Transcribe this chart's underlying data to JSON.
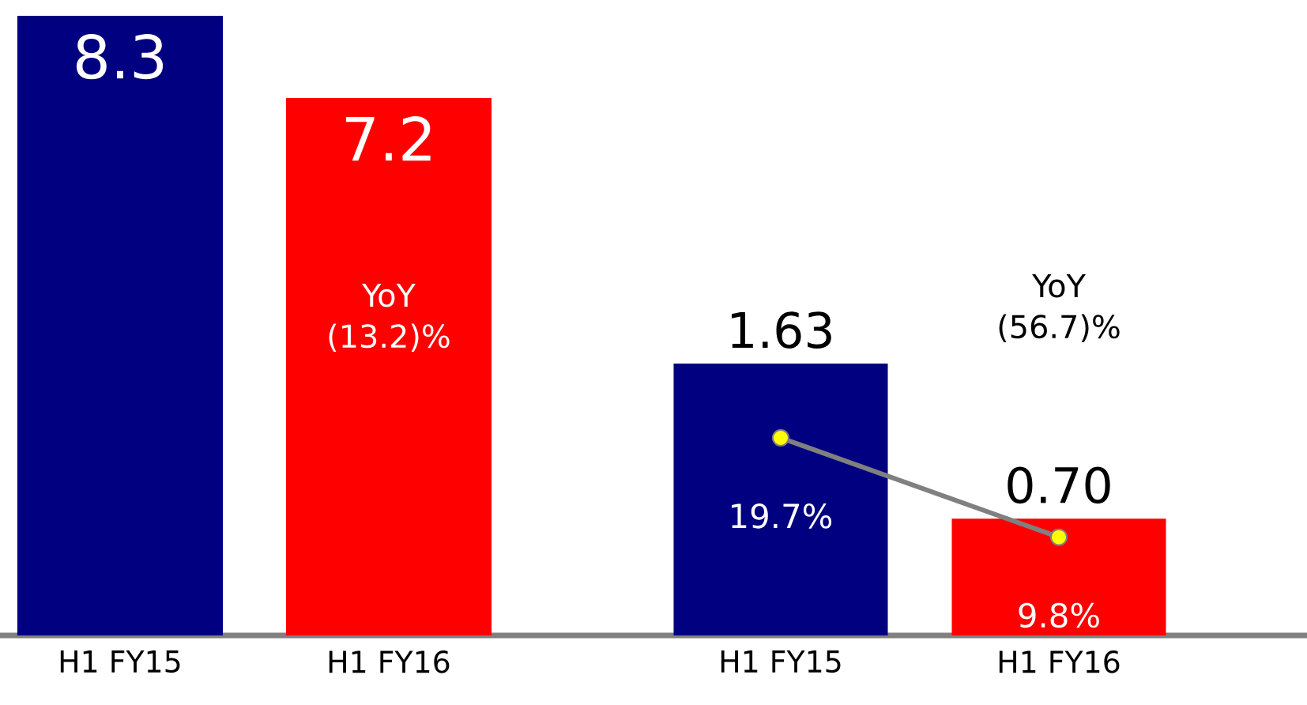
{
  "chart_data": [
    {
      "type": "bar",
      "categories": [
        "H1 FY15",
        "H1 FY16"
      ],
      "values": [
        8.3,
        7.2
      ],
      "colors": [
        "#000080",
        "#ff0000"
      ],
      "data_labels": true,
      "annotations": [
        "YoY (13.2)%"
      ]
    },
    {
      "type": "bar",
      "categories": [
        "H1 FY15",
        "H1 FY16"
      ],
      "series": [
        {
          "type": "bar",
          "values": [
            1.63,
            0.7
          ],
          "colors": [
            "#000080",
            "#ff0000"
          ],
          "value_labels": [
            "1.63",
            "0.70"
          ]
        },
        {
          "type": "line",
          "axis": "y2",
          "color": "#808080",
          "marker": "circle",
          "values": [
            19.7,
            9.8
          ],
          "value_labels": [
            "19.7%",
            "9.8%"
          ]
        }
      ],
      "annotations": [
        "YoY (56.7)%"
      ]
    }
  ]
}
